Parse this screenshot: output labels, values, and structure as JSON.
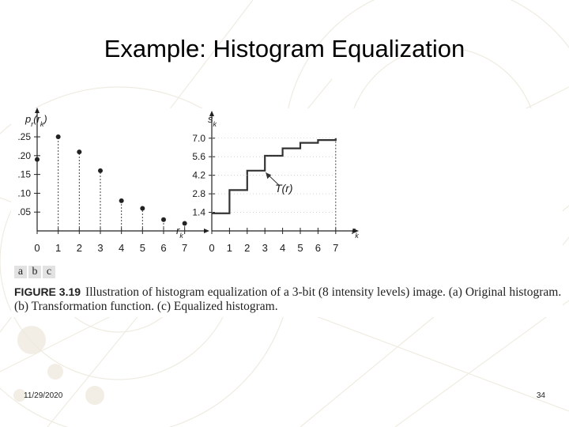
{
  "slide": {
    "title": "Example: Histogram Equalization",
    "date": "11/29/2020",
    "page_number": "34"
  },
  "figure": {
    "panel_labels": [
      "a",
      "b",
      "c"
    ],
    "caption_label": "FIGURE 3.19",
    "caption_text": "Illustration of histogram equalization of a 3-bit (8 intensity levels) image. (a) Original histogram. (b) Transformation function. (c) Equalized histogram."
  },
  "chart_data": [
    {
      "type": "scatter",
      "title": "",
      "ylabel": "p_r(r_k)",
      "xlabel": "r_k",
      "x": [
        0,
        1,
        2,
        3,
        4,
        5,
        6,
        7
      ],
      "x_ticks": [
        "0",
        "1",
        "2",
        "3",
        "4",
        "5",
        "6",
        "7"
      ],
      "y_ticks": [
        ".25",
        ".20",
        ".15",
        ".10",
        ".05"
      ],
      "y_tick_values": [
        0.25,
        0.2,
        0.15,
        0.1,
        0.05
      ],
      "values": [
        0.19,
        0.25,
        0.21,
        0.16,
        0.08,
        0.06,
        0.03,
        0.02
      ],
      "xlim": [
        0,
        7.5
      ],
      "ylim": [
        0,
        0.29
      ],
      "grid": false
    },
    {
      "type": "line",
      "title": "",
      "ylabel": "s_k",
      "xlabel": "r_k",
      "annotation": "T(r)",
      "x": [
        0,
        1,
        2,
        3,
        4,
        5,
        6,
        7
      ],
      "x_ticks": [
        "0",
        "1",
        "2",
        "3",
        "4",
        "5",
        "6",
        "7"
      ],
      "y_ticks": [
        "7.0",
        "5.6",
        "4.2",
        "2.8",
        "1.4"
      ],
      "y_tick_values": [
        7.0,
        5.6,
        4.2,
        2.8,
        1.4
      ],
      "values": [
        1.33,
        3.08,
        4.55,
        5.67,
        6.23,
        6.65,
        6.86,
        7.0
      ],
      "xlim": [
        0,
        7.5
      ],
      "ylim": [
        0,
        8.0
      ],
      "grid": false
    }
  ]
}
